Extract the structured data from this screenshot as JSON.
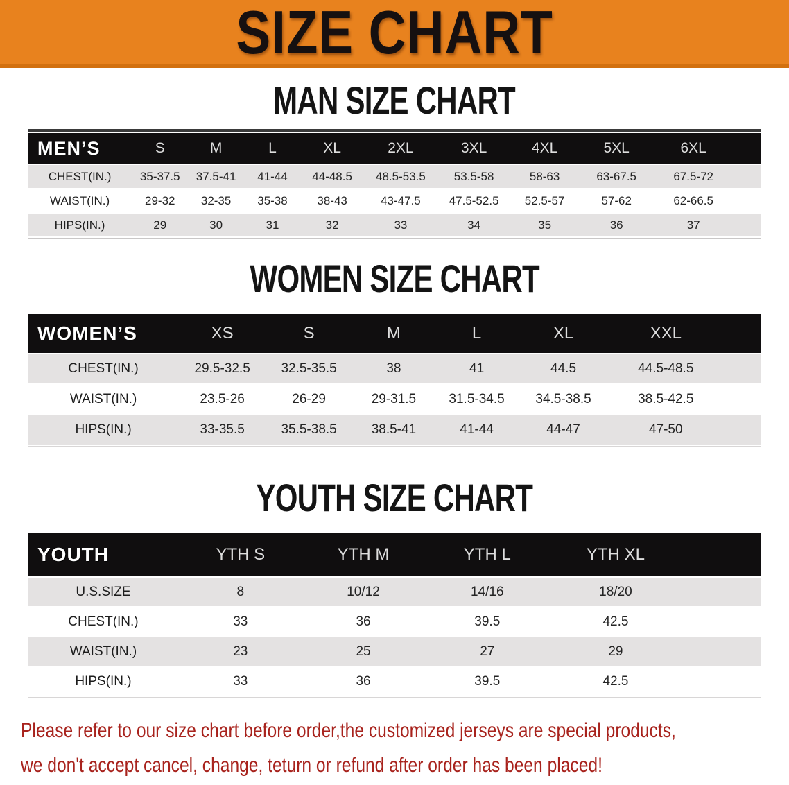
{
  "banner": {
    "title": "SIZE CHART"
  },
  "colors": {
    "banner_orange": "#e8821e",
    "banner_edge": "#d2700f",
    "header_black": "#100e0f",
    "stripe_gray": "#e4e2e2",
    "notice_red": "#a8231d"
  },
  "sections": [
    {
      "id": "men",
      "heading": "MAN SIZE CHART",
      "header_label": "MEN’S",
      "columns": [
        "S",
        "M",
        "L",
        "XL",
        "2XL",
        "3XL",
        "4XL",
        "5XL",
        "6XL"
      ],
      "rows": [
        {
          "label": "CHEST(IN.)",
          "values": [
            "35-37.5",
            "37.5-41",
            "41-44",
            "44-48.5",
            "48.5-53.5",
            "53.5-58",
            "58-63",
            "63-67.5",
            "67.5-72"
          ]
        },
        {
          "label": "WAIST(IN.)",
          "values": [
            "29-32",
            "32-35",
            "35-38",
            "38-43",
            "43-47.5",
            "47.5-52.5",
            "52.5-57",
            "57-62",
            "62-66.5"
          ]
        },
        {
          "label": "HIPS(IN.)",
          "values": [
            "29",
            "30",
            "31",
            "32",
            "33",
            "34",
            "35",
            "36",
            "37"
          ]
        }
      ]
    },
    {
      "id": "women",
      "heading": "WOMEN SIZE CHART",
      "header_label": "WOMEN’S",
      "columns": [
        "XS",
        "S",
        "M",
        "L",
        "XL",
        "XXL"
      ],
      "rows": [
        {
          "label": "CHEST(IN.)",
          "values": [
            "29.5-32.5",
            "32.5-35.5",
            "38",
            "41",
            "44.5",
            "44.5-48.5"
          ]
        },
        {
          "label": "WAIST(IN.)",
          "values": [
            "23.5-26",
            "26-29",
            "29-31.5",
            "31.5-34.5",
            "34.5-38.5",
            "38.5-42.5"
          ]
        },
        {
          "label": "HIPS(IN.)",
          "values": [
            "33-35.5",
            "35.5-38.5",
            "38.5-41",
            "41-44",
            "44-47",
            "47-50"
          ]
        }
      ]
    },
    {
      "id": "youth",
      "heading": "YOUTH SIZE CHART",
      "header_label": "YOUTH",
      "columns": [
        "YTH S",
        "YTH M",
        "YTH L",
        "YTH XL"
      ],
      "rows": [
        {
          "label": "U.S.SIZE",
          "values": [
            "8",
            "10/12",
            "14/16",
            "18/20"
          ]
        },
        {
          "label": "CHEST(IN.)",
          "values": [
            "33",
            "36",
            "39.5",
            "42.5"
          ]
        },
        {
          "label": "WAIST(IN.)",
          "values": [
            "23",
            "25",
            "27",
            "29"
          ]
        },
        {
          "label": "HIPS(IN.)",
          "values": [
            "33",
            "36",
            "39.5",
            "42.5"
          ]
        }
      ]
    }
  ],
  "notice": {
    "line1": "Please refer to our size chart before order,the customized jerseys are special products,",
    "line2": "we don't accept cancel, change, teturn or refund after order has been placed!"
  }
}
